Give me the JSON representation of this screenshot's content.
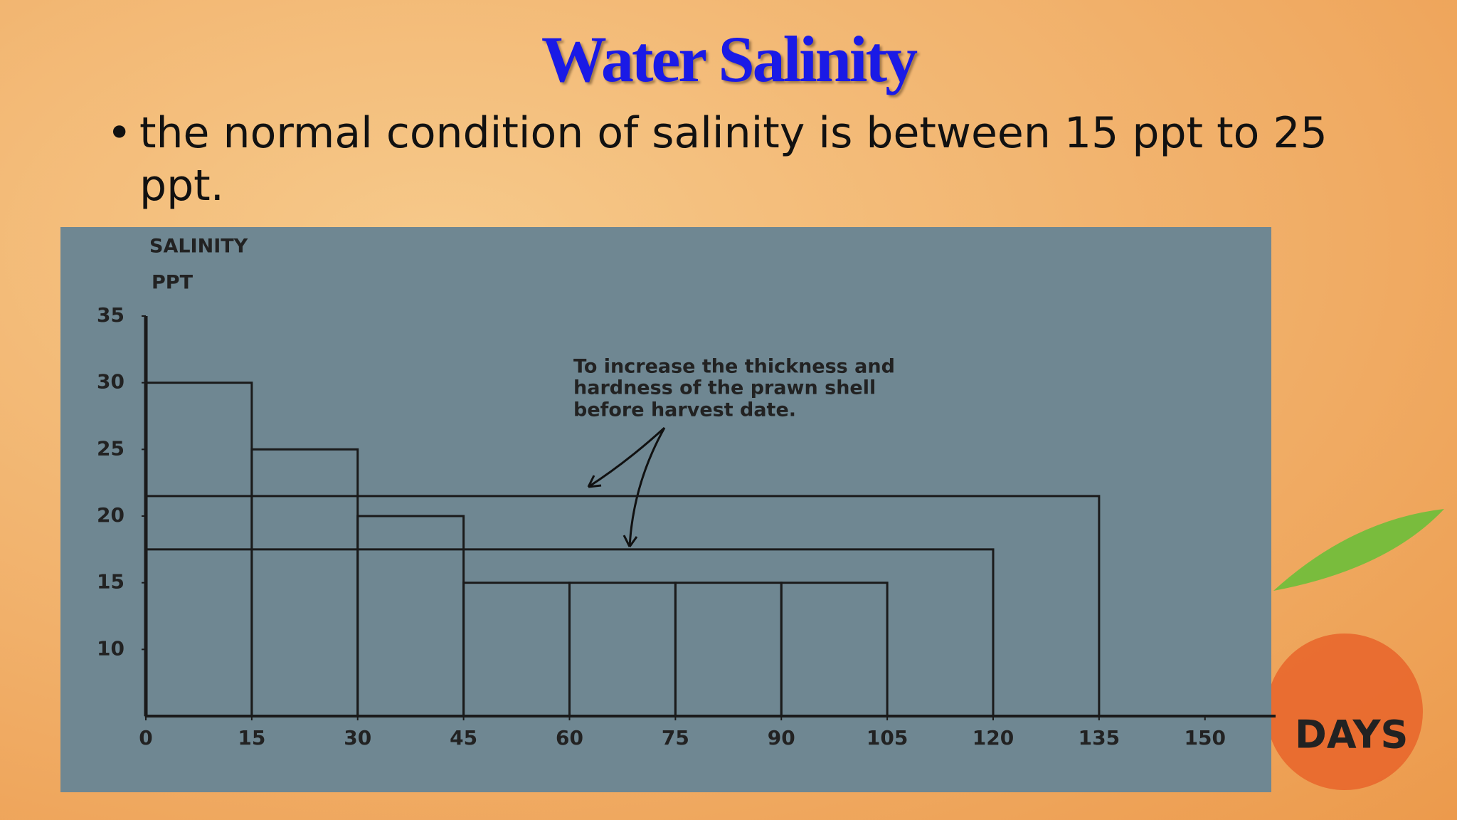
{
  "slide": {
    "title": "Water Salinity",
    "bullet": "the normal condition of salinity is between 15 ppt to 25 ppt."
  },
  "chart_data": {
    "type": "histogram",
    "y_label_lines": [
      "SALINITY",
      "PPT"
    ],
    "x_label": "DAYS",
    "annotation": [
      "To increase the thickness and",
      "hardness of the prawn shell",
      "before harvest date."
    ],
    "bins": [
      0,
      15,
      30,
      45,
      60,
      75,
      90,
      105
    ],
    "values": [
      30,
      25,
      20,
      15,
      15,
      15,
      15
    ],
    "levels": [
      {
        "x": [
          0,
          135
        ],
        "value": 21.5
      },
      {
        "x": [
          0,
          120
        ],
        "value": 17.5
      }
    ],
    "xlim": [
      0,
      160
    ],
    "ylim": [
      5,
      35
    ],
    "xticks": [
      0,
      15,
      30,
      45,
      60,
      75,
      90,
      105,
      120,
      135,
      150
    ],
    "yticks": [
      10,
      15,
      20,
      25,
      30,
      35
    ]
  }
}
